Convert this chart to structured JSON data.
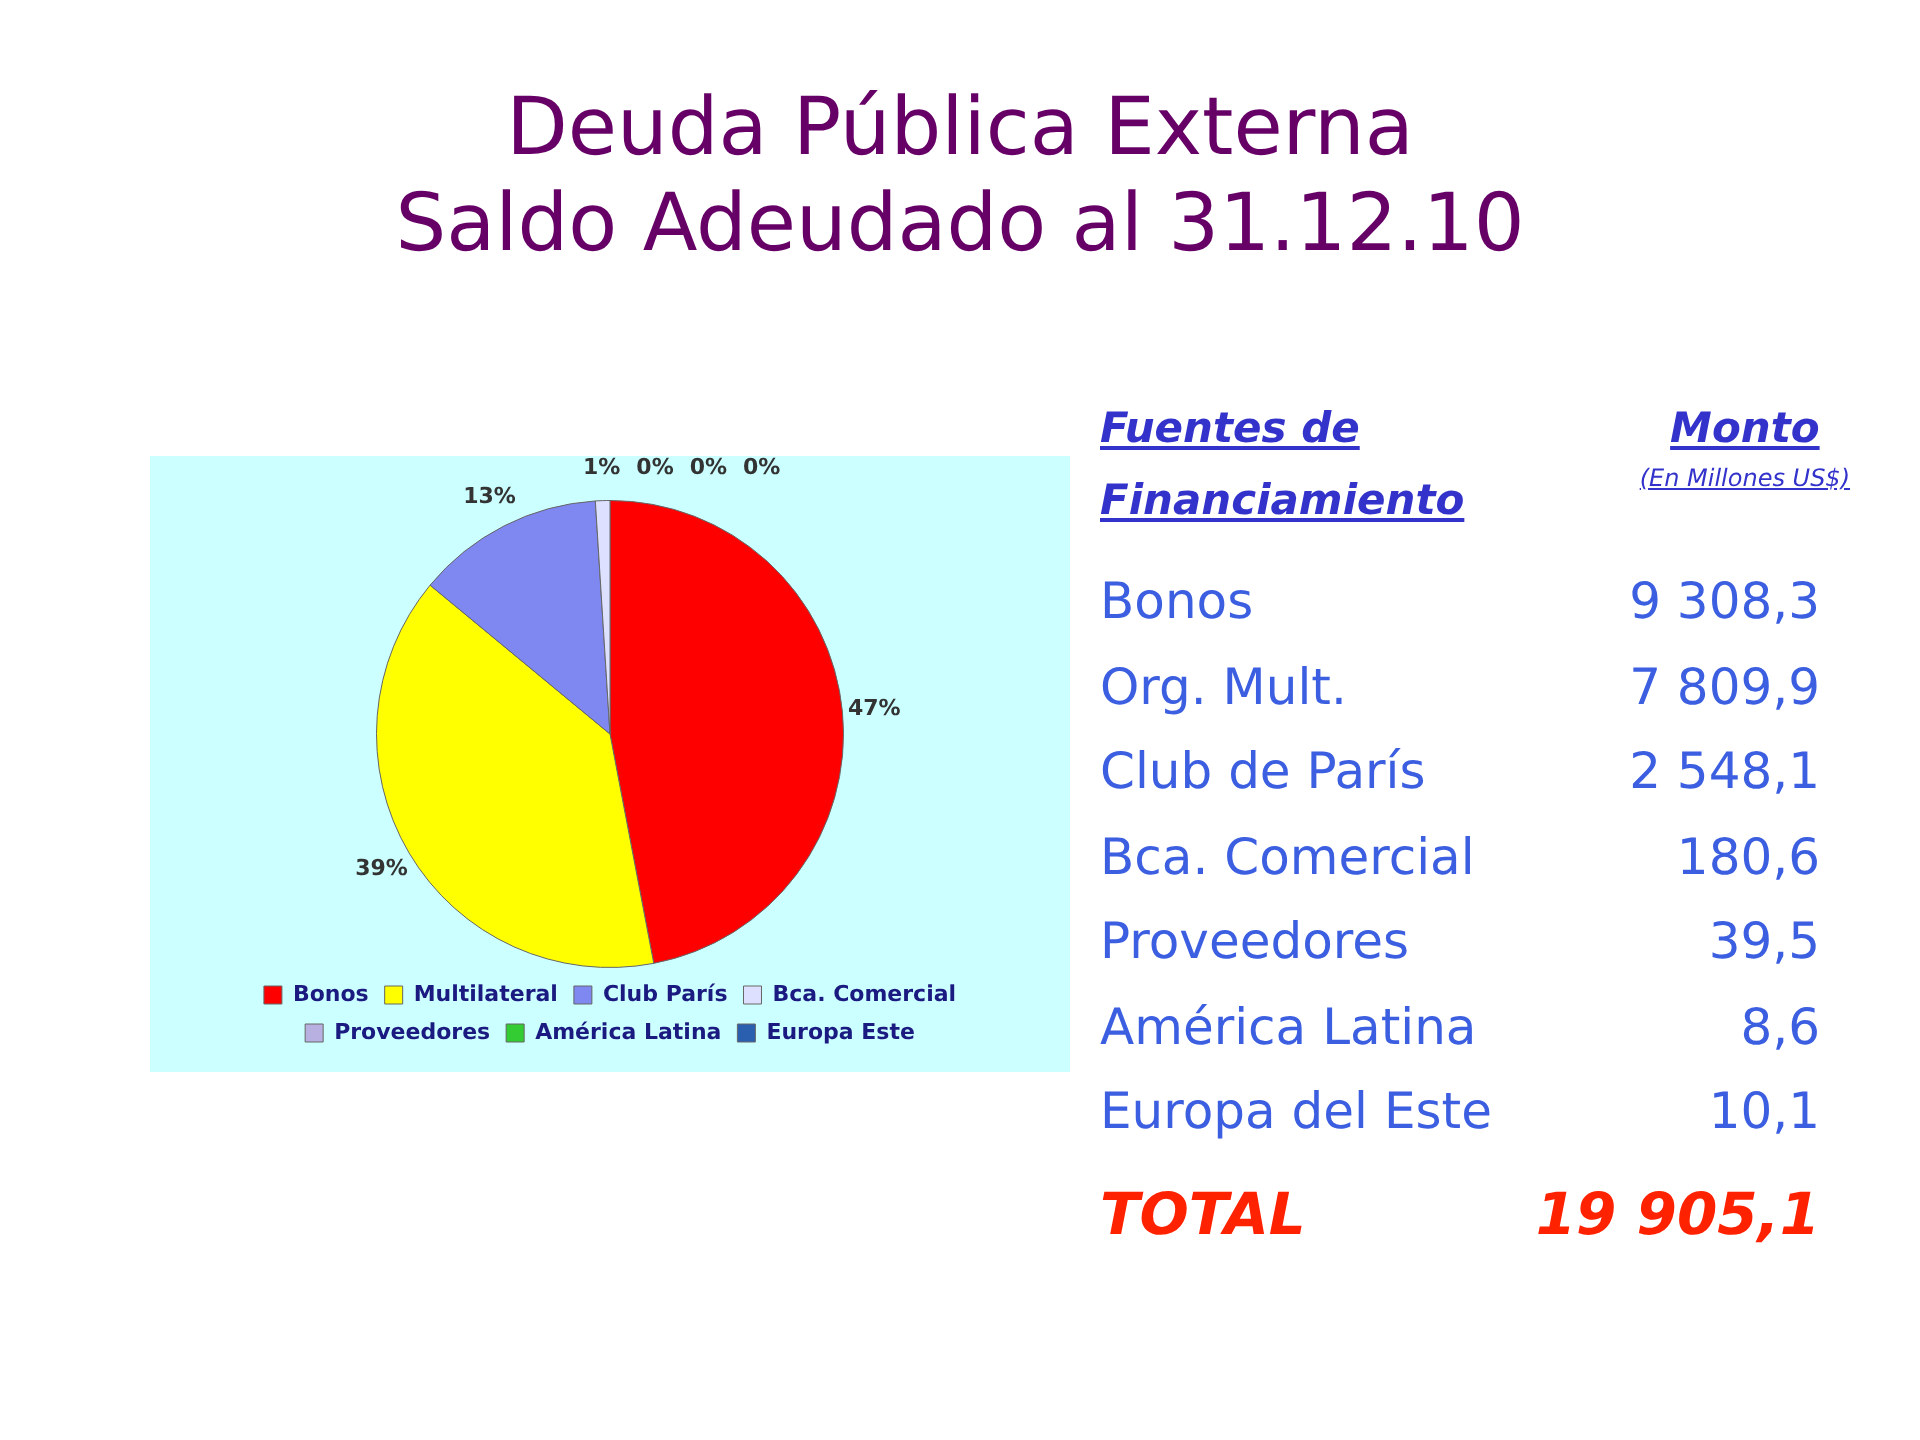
{
  "chart_data": [
    {
      "type": "pie",
      "title": "Deuda Pública Externa",
      "subtitle": "Saldo Adeudado al 31.12.10",
      "categories": [
        "Bonos",
        "Multilateral",
        "Club París",
        "Bca. Comercial",
        "Proveedores",
        "América Latina",
        "Europa Este"
      ],
      "values": [
        47,
        39,
        13,
        1,
        0,
        0,
        0
      ],
      "value_labels": [
        "47%",
        "39%",
        "13%",
        "1%",
        "0%",
        "0%",
        "0%"
      ],
      "colors": [
        "#ff0000",
        "#ffff00",
        "#7f87f0",
        "#dde0ff",
        "#b8b0e0",
        "#33cc33",
        "#2a5fb0"
      ],
      "legend": "bottom"
    },
    {
      "type": "other",
      "xlabel": "Fuentes de Financiamiento",
      "ylabel": "Monto",
      "subtitle": "(En Millones US$)",
      "categories": [
        "Bonos",
        "Org. Mult.",
        "Club de París",
        "Bca. Comercial",
        "Proveedores",
        "América Latina",
        "Europa del Este"
      ],
      "value_labels": [
        "9 308,3",
        "7 809,9",
        "2 548,1",
        "180,6",
        "39,5",
        "8,6",
        "10,1"
      ],
      "annotations": [
        "TOTAL",
        "19 905,1"
      ]
    }
  ]
}
